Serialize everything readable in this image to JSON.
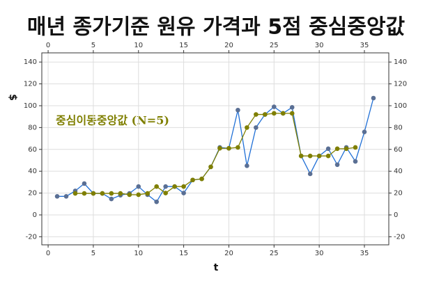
{
  "chart_data": {
    "type": "line",
    "title": "매년 종가기준 원유 가격과 5점 중심중앙값",
    "xlabel": "t",
    "ylabel": "$",
    "annotation": "중심이동중앙값 (N=5)",
    "x": [
      1,
      2,
      3,
      4,
      5,
      6,
      7,
      8,
      9,
      10,
      11,
      12,
      13,
      14,
      15,
      16,
      17,
      18,
      19,
      20,
      21,
      22,
      23,
      24,
      25,
      26,
      27,
      28,
      29,
      30,
      31,
      32,
      33,
      34,
      35,
      36
    ],
    "series": [
      {
        "color": "#1f6fd6",
        "marker_color": "#5a6f94",
        "values": [
          17,
          17,
          22,
          28.7,
          19.7,
          19.7,
          14.6,
          18,
          19.7,
          26,
          18.5,
          12,
          26,
          26,
          20,
          32,
          33,
          44,
          61.8,
          61,
          96,
          45,
          80,
          92,
          99,
          93,
          98.5,
          54,
          37.6,
          54,
          60.6,
          46,
          61.8,
          49,
          76,
          107
        ]
      },
      {
        "color": "#7f7f00",
        "marker_color": "#7f7f00",
        "values": [
          null,
          null,
          19.7,
          19.7,
          19.7,
          19.7,
          19.7,
          19.7,
          18.5,
          18.5,
          19.7,
          26,
          20,
          26,
          26,
          32,
          33,
          44,
          61,
          61,
          61.8,
          80,
          92,
          92,
          93,
          93,
          93,
          54,
          54,
          54,
          54,
          60.6,
          60.6,
          61.8,
          null,
          null
        ]
      }
    ],
    "xlim": [
      -0.7,
      37.7
    ],
    "xticks": [
      0,
      5,
      10,
      15,
      20,
      25,
      30,
      35
    ],
    "ylim": [
      -27.4,
      148.4
    ],
    "yticks": [
      -20,
      0,
      20,
      40,
      60,
      80,
      100,
      120,
      140
    ],
    "grid": true
  }
}
